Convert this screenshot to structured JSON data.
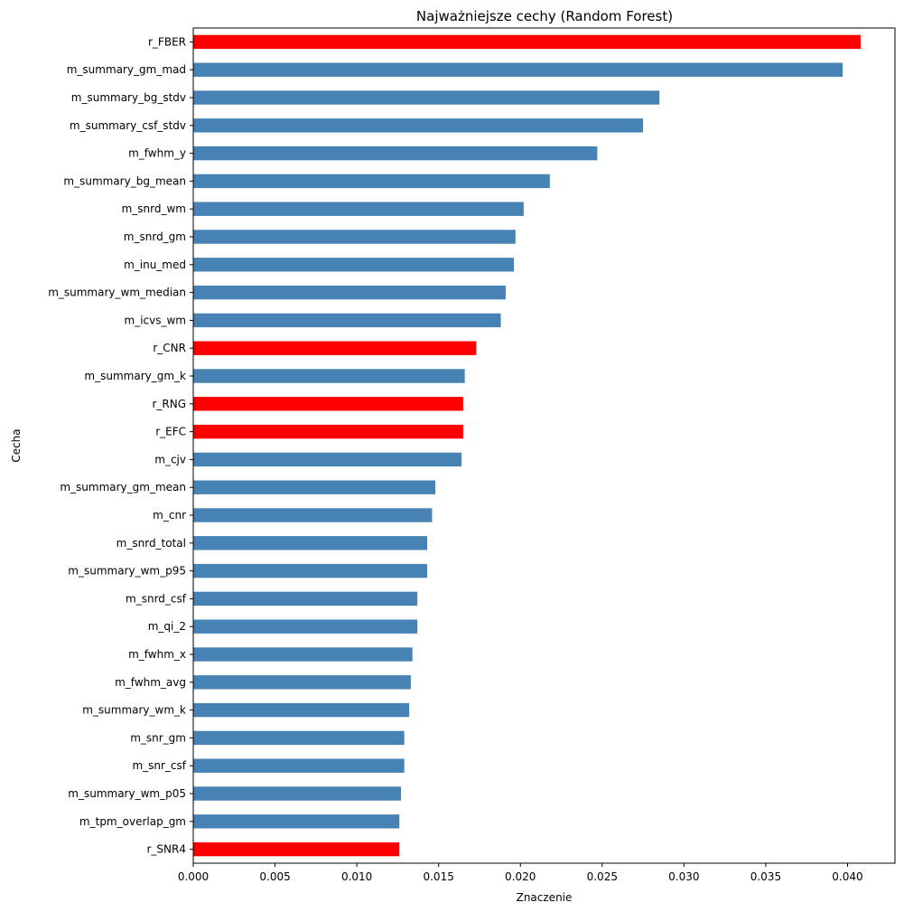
{
  "chart_data": {
    "type": "bar",
    "orientation": "horizontal",
    "title": "Najważniejsze cechy (Random Forest)",
    "xlabel": "Znaczenie",
    "ylabel": "Cecha",
    "xlim": [
      0,
      0.0429
    ],
    "xticks": [
      0.0,
      0.005,
      0.01,
      0.015,
      0.02,
      0.025,
      0.03,
      0.035,
      0.04
    ],
    "xtick_labels": [
      "0.000",
      "0.005",
      "0.010",
      "0.015",
      "0.020",
      "0.025",
      "0.030",
      "0.035",
      "0.040"
    ],
    "grid": false,
    "colors": {
      "default": "#4682b4",
      "highlight": "#ff0000"
    },
    "categories": [
      "r_FBER",
      "m_summary_gm_mad",
      "m_summary_bg_stdv",
      "m_summary_csf_stdv",
      "m_fwhm_y",
      "m_summary_bg_mean",
      "m_snrd_wm",
      "m_snrd_gm",
      "m_inu_med",
      "m_summary_wm_median",
      "m_icvs_wm",
      "r_CNR",
      "m_summary_gm_k",
      "r_RNG",
      "r_EFC",
      "m_cjv",
      "m_summary_gm_mean",
      "m_cnr",
      "m_snrd_total",
      "m_summary_wm_p95",
      "m_snrd_csf",
      "m_qi_2",
      "m_fwhm_x",
      "m_fwhm_avg",
      "m_summary_wm_k",
      "m_snr_gm",
      "m_snr_csf",
      "m_summary_wm_p05",
      "m_tpm_overlap_gm",
      "r_SNR4"
    ],
    "values": [
      0.0408,
      0.0397,
      0.0285,
      0.0275,
      0.0247,
      0.0218,
      0.0202,
      0.0197,
      0.0196,
      0.0191,
      0.0188,
      0.0173,
      0.0166,
      0.0165,
      0.0165,
      0.0164,
      0.0148,
      0.0146,
      0.0143,
      0.0143,
      0.0137,
      0.0137,
      0.0134,
      0.0133,
      0.0132,
      0.0129,
      0.0129,
      0.0127,
      0.0126,
      0.0126
    ],
    "highlighted": [
      "r_FBER",
      "r_CNR",
      "r_RNG",
      "r_EFC",
      "r_SNR4"
    ]
  }
}
